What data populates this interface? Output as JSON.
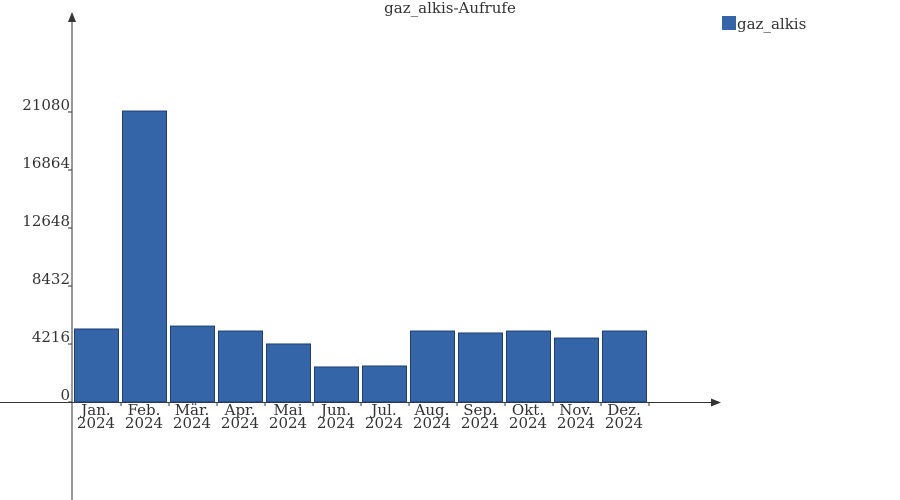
{
  "chart_data": {
    "type": "bar",
    "title": "gaz_alkis-Aufrufe",
    "categories": [
      "Jan. 2024",
      "Feb. 2024",
      "Mär. 2024",
      "Apr. 2024",
      "Mai 2024",
      "Jun. 2024",
      "Jul. 2024",
      "Aug. 2024",
      "Sep. 2024",
      "Okt. 2024",
      "Nov. 2024",
      "Dez. 2024"
    ],
    "series": [
      {
        "name": "gaz_alkis",
        "color": "#3465a8",
        "values": [
          5310,
          21150,
          5520,
          5160,
          4220,
          2550,
          2620,
          5160,
          5020,
          5160,
          4650,
          5160
        ]
      }
    ],
    "ylim": [
      -7120,
      28130
    ],
    "yticks": [
      0,
      4216,
      8432,
      12648,
      16864,
      21080
    ]
  }
}
